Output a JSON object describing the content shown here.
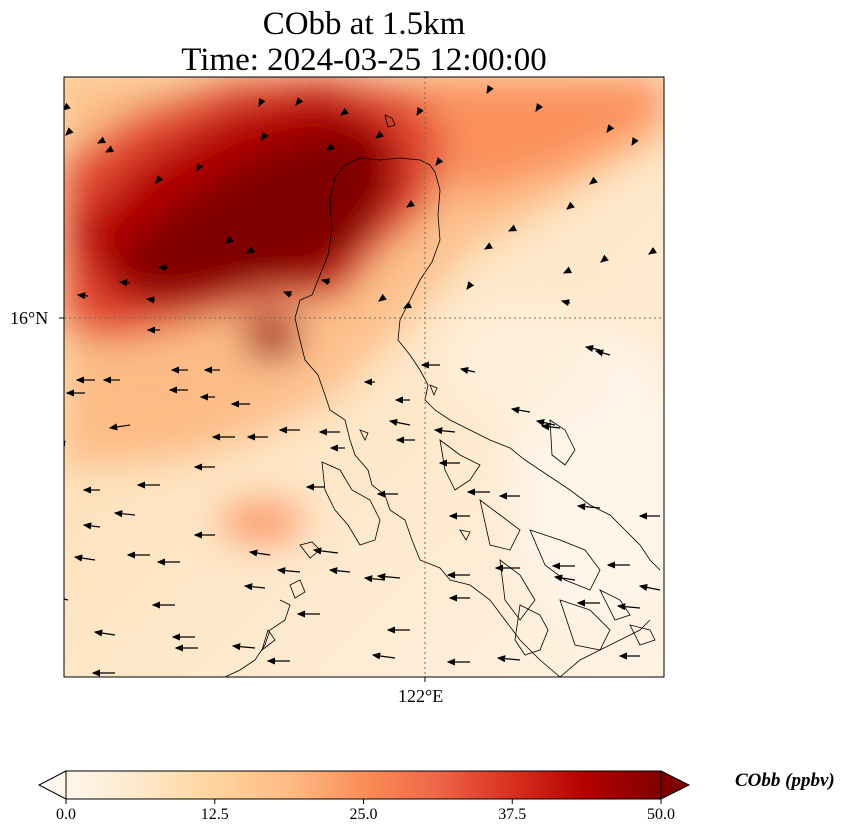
{
  "title_line1": "CObb at 1.5km",
  "title_line2": "Time: 2024-03-25 12:00:00",
  "map": {
    "projection": "lat-lon",
    "gridlines": {
      "latitude": [
        16
      ],
      "longitude": [
        122
      ],
      "style": "dotted"
    },
    "lat_tick_label": "16°N",
    "lon_tick_label": "122°E",
    "coastlines": true,
    "wind_vectors": true,
    "colormap": "OrRd"
  },
  "colorbar": {
    "title": "CObb (ppbv)",
    "min": 0.0,
    "max": 50.0,
    "extend": "both",
    "ticks": [
      "0.0",
      "12.5",
      "25.0",
      "37.5",
      "50.0"
    ],
    "colors": [
      "#fff7ec",
      "#fee8c8",
      "#fdd49e",
      "#fdbb84",
      "#fc8d59",
      "#ef6548",
      "#d7301f",
      "#b30000",
      "#7f0000"
    ]
  }
}
